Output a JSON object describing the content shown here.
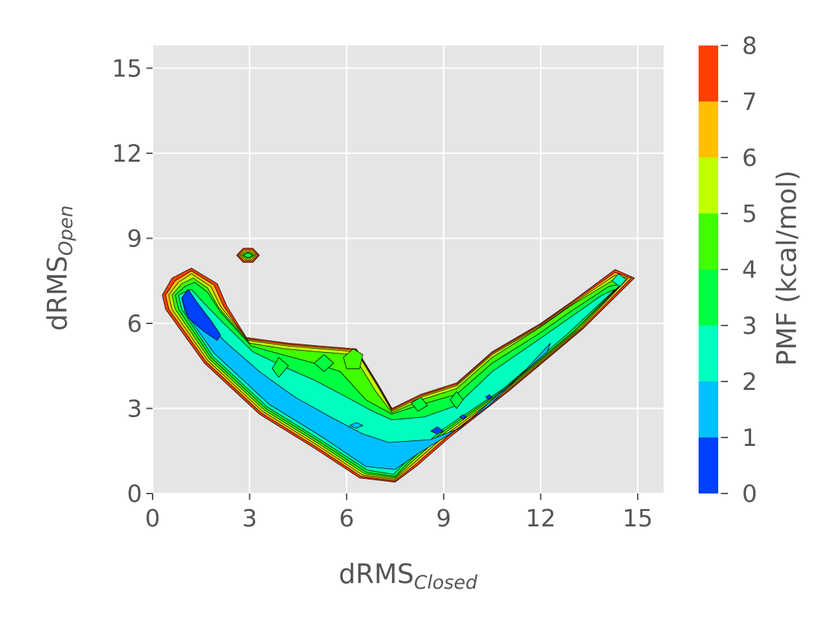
{
  "chart_data": {
    "type": "heatmap",
    "subtype": "filled-contour",
    "xlabel": {
      "base": "dRMS",
      "sub": "Closed"
    },
    "ylabel": {
      "base": "dRMS",
      "sub": "Open"
    },
    "xlim": [
      0,
      15.8
    ],
    "ylim": [
      0,
      15.8
    ],
    "x_ticks": [
      "0",
      "3",
      "6",
      "9",
      "12",
      "15"
    ],
    "y_ticks": [
      "0",
      "3",
      "6",
      "9",
      "12",
      "15"
    ],
    "x_tick_values": [
      0,
      3,
      6,
      9,
      12,
      15
    ],
    "y_tick_values": [
      0,
      3,
      6,
      9,
      12,
      15
    ],
    "grid": true,
    "background_color": "#e5e5e5",
    "colorbar": {
      "label": "PMF (kcal/mol)",
      "ticks": [
        "0",
        "1",
        "2",
        "3",
        "4",
        "5",
        "6",
        "7",
        "8"
      ],
      "levels": [
        0,
        1,
        2,
        3,
        4,
        5,
        6,
        7,
        8
      ],
      "colors": [
        "#0040ff",
        "#00bfff",
        "#00ffbf",
        "#00ff40",
        "#40ff00",
        "#bfff00",
        "#ffbf00",
        "#ff4000"
      ]
    },
    "regions": [
      {
        "level": 8,
        "points": [
          [
            0.3,
            7.0
          ],
          [
            0.6,
            7.6
          ],
          [
            1.2,
            7.95
          ],
          [
            2.0,
            7.4
          ],
          [
            2.3,
            6.6
          ],
          [
            2.9,
            5.5
          ],
          [
            4.2,
            5.3
          ],
          [
            5.2,
            5.2
          ],
          [
            6.3,
            5.1
          ],
          [
            7.0,
            3.8
          ],
          [
            7.4,
            3.0
          ],
          [
            8.3,
            3.5
          ],
          [
            9.4,
            3.9
          ],
          [
            10.5,
            5.0
          ],
          [
            12.0,
            6.0
          ],
          [
            13.0,
            6.8
          ],
          [
            14.3,
            7.9
          ],
          [
            14.9,
            7.6
          ],
          [
            13.3,
            5.8
          ],
          [
            11.0,
            3.6
          ],
          [
            9.2,
            2.0
          ],
          [
            8.2,
            1.0
          ],
          [
            7.5,
            0.4
          ],
          [
            6.4,
            0.55
          ],
          [
            5.0,
            1.6
          ],
          [
            3.3,
            2.8
          ],
          [
            1.6,
            4.6
          ],
          [
            0.4,
            6.5
          ]
        ]
      },
      {
        "level": 7,
        "points": [
          [
            0.4,
            7.0
          ],
          [
            0.7,
            7.5
          ],
          [
            1.2,
            7.85
          ],
          [
            1.9,
            7.35
          ],
          [
            2.2,
            6.6
          ],
          [
            2.9,
            5.45
          ],
          [
            4.2,
            5.25
          ],
          [
            5.2,
            5.15
          ],
          [
            6.3,
            5.05
          ],
          [
            7.0,
            3.75
          ],
          [
            7.4,
            2.95
          ],
          [
            8.3,
            3.45
          ],
          [
            9.4,
            3.85
          ],
          [
            10.5,
            4.95
          ],
          [
            12.0,
            5.95
          ],
          [
            13.0,
            6.75
          ],
          [
            14.3,
            7.8
          ],
          [
            14.8,
            7.6
          ],
          [
            13.25,
            5.8
          ],
          [
            11.0,
            3.65
          ],
          [
            9.15,
            2.05
          ],
          [
            8.15,
            1.05
          ],
          [
            7.5,
            0.45
          ],
          [
            6.45,
            0.6
          ],
          [
            5.05,
            1.65
          ],
          [
            3.35,
            2.85
          ],
          [
            1.65,
            4.65
          ],
          [
            0.5,
            6.5
          ]
        ]
      },
      {
        "level": 6,
        "points": [
          [
            0.5,
            7.0
          ],
          [
            0.8,
            7.45
          ],
          [
            1.2,
            7.75
          ],
          [
            1.8,
            7.3
          ],
          [
            2.1,
            6.6
          ],
          [
            2.95,
            5.4
          ],
          [
            4.2,
            5.2
          ],
          [
            5.2,
            5.1
          ],
          [
            6.3,
            5.0
          ],
          [
            7.0,
            3.7
          ],
          [
            7.4,
            2.9
          ],
          [
            8.3,
            3.4
          ],
          [
            9.4,
            3.8
          ],
          [
            10.5,
            4.9
          ],
          [
            12.0,
            5.9
          ],
          [
            13.0,
            6.7
          ],
          [
            14.3,
            7.7
          ],
          [
            14.7,
            7.6
          ],
          [
            13.2,
            5.8
          ],
          [
            11.0,
            3.7
          ],
          [
            9.1,
            2.1
          ],
          [
            8.1,
            1.1
          ],
          [
            7.5,
            0.5
          ],
          [
            6.5,
            0.65
          ],
          [
            5.1,
            1.7
          ],
          [
            3.4,
            2.9
          ],
          [
            1.7,
            4.7
          ],
          [
            0.6,
            6.5
          ]
        ]
      },
      {
        "level": 5,
        "points": [
          [
            0.6,
            7.0
          ],
          [
            0.9,
            7.4
          ],
          [
            1.25,
            7.6
          ],
          [
            1.7,
            7.25
          ],
          [
            2.05,
            6.55
          ],
          [
            3.0,
            5.3
          ],
          [
            4.1,
            5.1
          ],
          [
            5.1,
            5.0
          ],
          [
            6.2,
            4.9
          ],
          [
            6.9,
            3.6
          ],
          [
            7.4,
            2.85
          ],
          [
            8.3,
            3.3
          ],
          [
            9.4,
            3.7
          ],
          [
            10.5,
            4.8
          ],
          [
            11.9,
            5.8
          ],
          [
            12.9,
            6.6
          ],
          [
            14.2,
            7.5
          ],
          [
            14.6,
            7.5
          ],
          [
            13.1,
            5.75
          ],
          [
            10.95,
            3.7
          ],
          [
            9.05,
            2.15
          ],
          [
            8.05,
            1.15
          ],
          [
            7.5,
            0.55
          ],
          [
            6.55,
            0.7
          ],
          [
            5.15,
            1.75
          ],
          [
            3.45,
            2.95
          ],
          [
            1.75,
            4.75
          ],
          [
            0.7,
            6.5
          ]
        ]
      },
      {
        "level": 4,
        "points": [
          [
            0.7,
            7.0
          ],
          [
            1.0,
            7.3
          ],
          [
            1.3,
            7.45
          ],
          [
            1.7,
            7.1
          ],
          [
            2.1,
            6.4
          ],
          [
            3.05,
            5.2
          ],
          [
            4.0,
            4.9
          ],
          [
            5.0,
            4.6
          ],
          [
            5.8,
            4.3
          ],
          [
            6.6,
            3.3
          ],
          [
            7.4,
            2.8
          ],
          [
            8.2,
            3.1
          ],
          [
            9.4,
            3.5
          ],
          [
            10.5,
            4.6
          ],
          [
            11.9,
            5.6
          ],
          [
            12.9,
            6.4
          ],
          [
            14.1,
            7.3
          ],
          [
            14.5,
            7.4
          ],
          [
            13.0,
            5.7
          ],
          [
            10.9,
            3.7
          ],
          [
            9.0,
            2.2
          ],
          [
            8.0,
            1.2
          ],
          [
            7.5,
            0.6
          ],
          [
            6.6,
            0.75
          ],
          [
            5.2,
            1.8
          ],
          [
            3.5,
            3.0
          ],
          [
            1.8,
            4.8
          ],
          [
            0.8,
            6.5
          ]
        ]
      },
      {
        "level": 3,
        "points": [
          [
            0.8,
            7.0
          ],
          [
            1.2,
            7.2
          ],
          [
            1.6,
            6.7
          ],
          [
            2.2,
            6.0
          ],
          [
            3.1,
            5.0
          ],
          [
            4.0,
            4.5
          ],
          [
            5.0,
            4.0
          ],
          [
            6.0,
            3.4
          ],
          [
            6.8,
            2.9
          ],
          [
            7.4,
            2.6
          ],
          [
            8.4,
            2.7
          ],
          [
            9.4,
            3.1
          ],
          [
            10.5,
            4.3
          ],
          [
            11.9,
            5.4
          ],
          [
            12.9,
            6.2
          ],
          [
            13.9,
            7.0
          ],
          [
            14.3,
            7.2
          ],
          [
            12.8,
            5.6
          ],
          [
            10.85,
            3.7
          ],
          [
            8.95,
            2.25
          ],
          [
            7.95,
            1.25
          ],
          [
            7.45,
            0.68
          ],
          [
            6.65,
            0.82
          ],
          [
            5.25,
            1.85
          ],
          [
            3.55,
            3.05
          ],
          [
            1.85,
            4.85
          ],
          [
            0.9,
            6.5
          ]
        ]
      },
      {
        "level": 2,
        "points": [
          [
            0.9,
            6.9
          ],
          [
            1.3,
            6.5
          ],
          [
            2.2,
            5.4
          ],
          [
            3.3,
            4.3
          ],
          [
            4.4,
            3.4
          ],
          [
            5.5,
            2.7
          ],
          [
            6.5,
            2.1
          ],
          [
            7.3,
            1.8
          ],
          [
            8.6,
            1.9
          ],
          [
            9.5,
            2.3
          ],
          [
            10.6,
            3.4
          ],
          [
            11.8,
            4.6
          ],
          [
            12.2,
            5.0
          ],
          [
            12.3,
            5.3
          ],
          [
            11.4,
            4.2
          ],
          [
            10.4,
            3.1
          ],
          [
            9.2,
            2.1
          ],
          [
            8.2,
            1.4
          ],
          [
            7.5,
            0.85
          ],
          [
            6.6,
            0.95
          ],
          [
            5.3,
            1.95
          ],
          [
            3.6,
            3.15
          ],
          [
            1.9,
            4.95
          ],
          [
            1.0,
            6.4
          ]
        ]
      },
      {
        "level": 1,
        "points": [
          [
            0.9,
            6.9
          ],
          [
            1.1,
            7.2
          ],
          [
            1.4,
            6.7
          ],
          [
            1.8,
            6.1
          ],
          [
            2.1,
            5.6
          ],
          [
            2.0,
            5.4
          ],
          [
            1.6,
            5.7
          ],
          [
            1.1,
            6.2
          ]
        ]
      },
      {
        "level": 8,
        "points": [
          [
            2.6,
            8.4
          ],
          [
            2.8,
            8.65
          ],
          [
            3.1,
            8.65
          ],
          [
            3.3,
            8.4
          ],
          [
            3.1,
            8.15
          ],
          [
            2.8,
            8.15
          ]
        ]
      },
      {
        "level": 7,
        "points": [
          [
            2.65,
            8.4
          ],
          [
            2.82,
            8.6
          ],
          [
            3.08,
            8.6
          ],
          [
            3.25,
            8.4
          ],
          [
            3.08,
            8.2
          ],
          [
            2.82,
            8.2
          ]
        ]
      },
      {
        "level": 6,
        "points": [
          [
            2.7,
            8.4
          ],
          [
            2.85,
            8.55
          ],
          [
            3.05,
            8.55
          ],
          [
            3.2,
            8.4
          ],
          [
            3.05,
            8.25
          ],
          [
            2.85,
            8.25
          ]
        ]
      },
      {
        "level": 5,
        "points": [
          [
            2.75,
            8.4
          ],
          [
            2.88,
            8.5
          ],
          [
            3.02,
            8.5
          ],
          [
            3.15,
            8.4
          ],
          [
            3.02,
            8.3
          ],
          [
            2.88,
            8.3
          ]
        ]
      },
      {
        "level": 4,
        "points": [
          [
            2.8,
            8.4
          ],
          [
            2.92,
            8.47
          ],
          [
            3.0,
            8.47
          ],
          [
            3.1,
            8.4
          ],
          [
            3.0,
            8.33
          ],
          [
            2.92,
            8.33
          ]
        ]
      },
      {
        "level": 5,
        "points": [
          [
            5.9,
            4.8
          ],
          [
            6.2,
            5.1
          ],
          [
            6.5,
            4.9
          ],
          [
            6.4,
            4.4
          ],
          [
            6.0,
            4.4
          ]
        ]
      },
      {
        "level": 4,
        "points": [
          [
            5.0,
            4.6
          ],
          [
            5.3,
            4.9
          ],
          [
            5.6,
            4.6
          ],
          [
            5.3,
            4.3
          ]
        ]
      },
      {
        "level": 4,
        "points": [
          [
            3.7,
            4.4
          ],
          [
            3.9,
            4.8
          ],
          [
            4.2,
            4.5
          ],
          [
            3.9,
            4.1
          ]
        ]
      },
      {
        "level": 4,
        "points": [
          [
            8.0,
            3.2
          ],
          [
            8.3,
            3.4
          ],
          [
            8.5,
            3.1
          ],
          [
            8.2,
            2.9
          ]
        ]
      },
      {
        "level": 4,
        "points": [
          [
            9.2,
            3.3
          ],
          [
            9.4,
            3.6
          ],
          [
            9.6,
            3.3
          ],
          [
            9.4,
            3.0
          ]
        ]
      },
      {
        "level": 2,
        "points": [
          [
            6.1,
            2.4
          ],
          [
            6.3,
            2.5
          ],
          [
            6.5,
            2.4
          ],
          [
            6.3,
            2.3
          ]
        ]
      },
      {
        "level": 1,
        "points": [
          [
            8.6,
            2.2
          ],
          [
            8.8,
            2.35
          ],
          [
            9.0,
            2.2
          ],
          [
            8.8,
            2.1
          ]
        ]
      },
      {
        "level": 1,
        "points": [
          [
            9.5,
            2.7
          ],
          [
            9.6,
            2.78
          ],
          [
            9.7,
            2.7
          ],
          [
            9.6,
            2.62
          ]
        ]
      },
      {
        "level": 1,
        "points": [
          [
            10.3,
            3.4
          ],
          [
            10.4,
            3.48
          ],
          [
            10.5,
            3.4
          ],
          [
            10.4,
            3.32
          ]
        ]
      },
      {
        "level": 3,
        "points": [
          [
            14.2,
            7.5
          ],
          [
            14.4,
            7.75
          ],
          [
            14.65,
            7.55
          ],
          [
            14.45,
            7.3
          ]
        ]
      }
    ]
  }
}
